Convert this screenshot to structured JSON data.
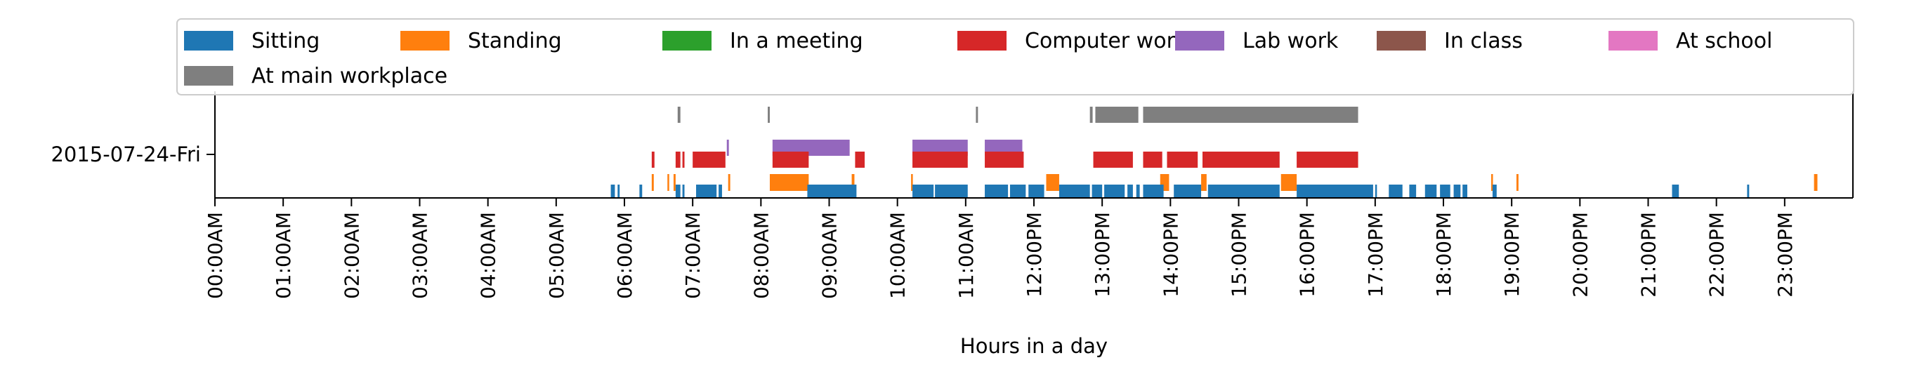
{
  "chart_data": {
    "type": "timeline",
    "title": "",
    "xlabel": "Hours in a day",
    "ylabel": "",
    "xlim": [
      0,
      24
    ],
    "x_ticks": [
      "00:00AM",
      "01:00AM",
      "02:00AM",
      "03:00AM",
      "04:00AM",
      "05:00AM",
      "06:00AM",
      "07:00AM",
      "08:00AM",
      "09:00AM",
      "10:00AM",
      "11:00AM",
      "12:00PM",
      "13:00PM",
      "14:00PM",
      "15:00PM",
      "16:00PM",
      "17:00PM",
      "18:00PM",
      "19:00PM",
      "20:00PM",
      "21:00PM",
      "22:00PM",
      "23:00PM"
    ],
    "y_categories": [
      "2015-07-24-Fri"
    ],
    "legend_position": "top",
    "series": [
      {
        "name": "Sitting",
        "color": "#1f77b4",
        "intervals": [
          [
            5.8,
            5.86
          ],
          [
            5.9,
            5.93
          ],
          [
            6.22,
            6.26
          ],
          [
            6.75,
            6.82
          ],
          [
            6.85,
            6.88
          ],
          [
            7.05,
            7.35
          ],
          [
            7.38,
            7.43
          ],
          [
            8.68,
            9.4
          ],
          [
            10.22,
            10.53
          ],
          [
            10.55,
            11.03
          ],
          [
            11.28,
            11.62
          ],
          [
            11.65,
            11.88
          ],
          [
            11.92,
            12.15
          ],
          [
            12.37,
            12.82
          ],
          [
            12.85,
            13.0
          ],
          [
            13.03,
            13.33
          ],
          [
            13.37,
            13.45
          ],
          [
            13.5,
            13.55
          ],
          [
            13.6,
            13.9
          ],
          [
            14.05,
            14.45
          ],
          [
            14.55,
            15.6
          ],
          [
            15.85,
            16.97
          ],
          [
            17.0,
            17.02
          ],
          [
            17.2,
            17.4
          ],
          [
            17.5,
            17.6
          ],
          [
            17.73,
            17.9
          ],
          [
            17.95,
            18.1
          ],
          [
            18.15,
            18.25
          ],
          [
            18.28,
            18.35
          ],
          [
            18.72,
            18.78
          ],
          [
            21.35,
            21.45
          ],
          [
            22.45,
            22.48
          ]
        ]
      },
      {
        "name": "Standing",
        "color": "#ff7f0e",
        "intervals": [
          [
            6.4,
            6.43
          ],
          [
            6.63,
            6.65
          ],
          [
            6.72,
            6.75
          ],
          [
            7.52,
            7.55
          ],
          [
            8.13,
            8.7
          ],
          [
            9.33,
            9.37
          ],
          [
            10.2,
            10.22
          ],
          [
            12.18,
            12.37
          ],
          [
            13.85,
            13.98
          ],
          [
            14.45,
            14.53
          ],
          [
            15.62,
            15.85
          ],
          [
            18.7,
            18.72
          ],
          [
            19.07,
            19.1
          ],
          [
            23.43,
            23.48
          ]
        ]
      },
      {
        "name": "In a meeting",
        "color": "#2ca02c",
        "intervals": []
      },
      {
        "name": "Computer work",
        "color": "#d62728",
        "intervals": [
          [
            6.4,
            6.44
          ],
          [
            6.75,
            6.82
          ],
          [
            6.85,
            6.88
          ],
          [
            7.0,
            7.48
          ],
          [
            8.17,
            8.7
          ],
          [
            9.38,
            9.52
          ],
          [
            10.22,
            11.03
          ],
          [
            11.28,
            11.85
          ],
          [
            12.87,
            13.45
          ],
          [
            13.6,
            13.88
          ],
          [
            13.95,
            14.4
          ],
          [
            14.47,
            15.6
          ],
          [
            15.85,
            16.75
          ]
        ]
      },
      {
        "name": "Lab work",
        "color": "#9467bd",
        "intervals": [
          [
            7.5,
            7.53
          ],
          [
            8.17,
            9.3
          ],
          [
            10.22,
            11.03
          ],
          [
            11.28,
            11.83
          ]
        ]
      },
      {
        "name": "In class",
        "color": "#8c564b",
        "intervals": []
      },
      {
        "name": "At school",
        "color": "#e377c2",
        "intervals": []
      },
      {
        "name": "At main workplace",
        "color": "#7f7f7f",
        "intervals": [
          [
            6.78,
            6.82
          ],
          [
            8.1,
            8.13
          ],
          [
            11.15,
            11.18
          ],
          [
            12.82,
            12.86
          ],
          [
            12.9,
            13.53
          ],
          [
            13.6,
            16.75
          ]
        ]
      }
    ]
  }
}
